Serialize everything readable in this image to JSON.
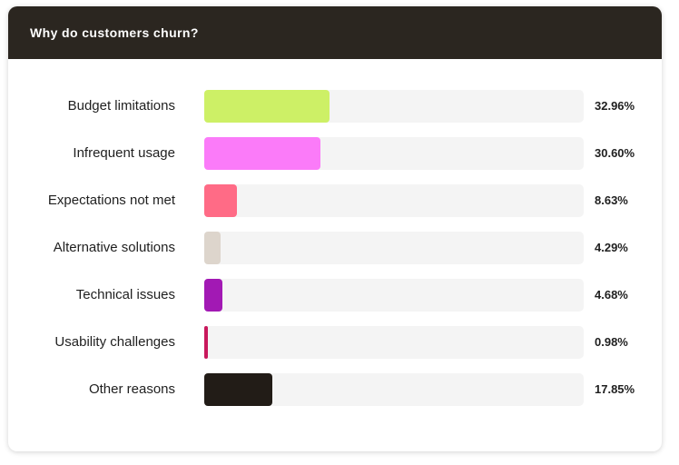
{
  "card": {
    "title": "Why do customers churn?"
  },
  "chart_data": {
    "type": "bar",
    "orientation": "horizontal",
    "title": "Why do customers churn?",
    "unit": "%",
    "xlim": [
      0,
      100
    ],
    "categories": [
      "Budget limitations",
      "Infrequent usage",
      "Expectations not met",
      "Alternative solutions",
      "Technical issues",
      "Usability challenges",
      "Other reasons"
    ],
    "values": [
      32.96,
      30.6,
      8.63,
      4.29,
      4.68,
      0.98,
      17.85
    ],
    "value_labels": [
      "32.96%",
      "30.60%",
      "8.63%",
      "4.29%",
      "4.68%",
      "0.98%",
      "17.85%"
    ],
    "colors": [
      "#cdf066",
      "#fb7bf9",
      "#ff6b86",
      "#ddd5cc",
      "#a219b4",
      "#c8185c",
      "#221c17"
    ],
    "track_color": "#f4f4f4"
  }
}
